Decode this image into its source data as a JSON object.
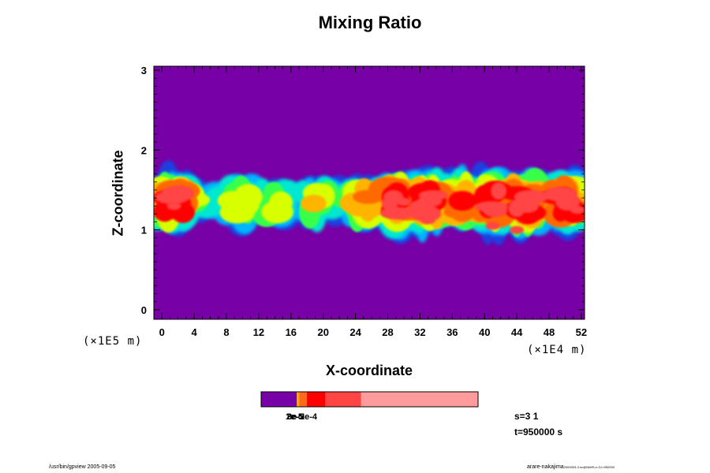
{
  "chart_data": {
    "type": "heatmap",
    "title": "Mixing Ratio",
    "xlabel": "X-coordinate",
    "ylabel": "Z-coordinate",
    "x_scale_note": "(×1E4 m)",
    "y_scale_note": "(×1E5 m)",
    "xlim": [
      -1,
      52.4
    ],
    "ylim": [
      -0.12,
      3.05
    ],
    "x_ticks": [
      "0",
      "4",
      "8",
      "12",
      "16",
      "20",
      "24",
      "28",
      "32",
      "36",
      "40",
      "44",
      "48",
      "52"
    ],
    "x_tick_values": [
      0,
      4,
      8,
      12,
      16,
      20,
      24,
      28,
      32,
      36,
      40,
      44,
      48,
      52
    ],
    "y_ticks": [
      "0",
      "1",
      "2",
      "3"
    ],
    "y_tick_values": [
      0,
      1,
      2,
      3
    ],
    "background_color": "#7700a6",
    "field_layer_z": [
      0.87,
      1.75
    ],
    "levels_colors": [
      "#7700a6",
      "#1f3fe0",
      "#00b4ff",
      "#00e8d0",
      "#38ff48",
      "#d8ff00",
      "#ffb400",
      "#ff6a00",
      "#ff0000",
      "#ff4444",
      "#ff9b9b"
    ],
    "colorbar": {
      "bands": [
        {
          "color": "#7700a6",
          "span": 0.165
        },
        {
          "color": "#ffd000",
          "span": 0.004
        },
        {
          "color": "#ff9f00",
          "span": 0.004
        },
        {
          "color": "#ff7a00",
          "span": 0.004
        },
        {
          "color": "#ff6a1a",
          "span": 0.034
        },
        {
          "color": "#ff0000",
          "span": 0.086
        },
        {
          "color": "#ff4444",
          "span": 0.163
        },
        {
          "color": "#ff9b9b",
          "span": 0.54
        }
      ],
      "labels": [
        "1e-5",
        "2e-5",
        "3e-5",
        "2e-4"
      ]
    }
  },
  "info": {
    "s_label": "s=3 1",
    "t_label": "t=950000 s"
  },
  "footer": {
    "left": "/usr/bin/gpview 2005-09-05",
    "right_main": "arare-nakajima",
    "right_small": "2000003-3.nc@MixRt,x=3,t=950000"
  }
}
